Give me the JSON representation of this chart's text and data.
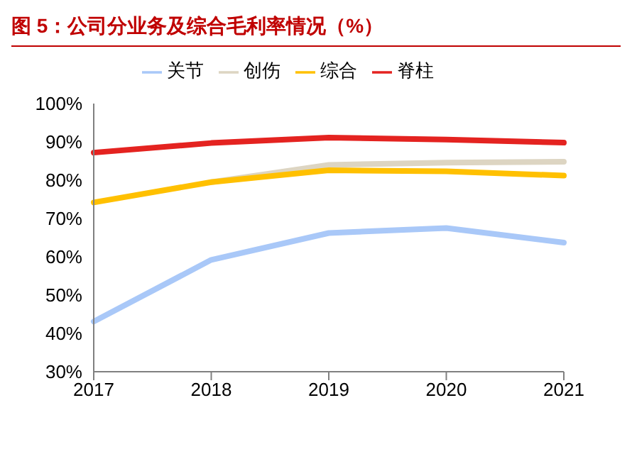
{
  "chart_data": {
    "type": "line",
    "title": "图 5：公司分业务及综合毛利率情况（%）",
    "categories": [
      "2017",
      "2018",
      "2019",
      "2020",
      "2021"
    ],
    "series": [
      {
        "name": "脊柱",
        "color": "#e42320",
        "values": [
          87.2,
          89.7,
          91.1,
          90.6,
          89.8
        ]
      },
      {
        "name": "创伤",
        "color": "#ddd5c2",
        "values": [
          null,
          79.5,
          84.0,
          84.6,
          84.8
        ]
      },
      {
        "name": "关节",
        "color": "#a9c8f8",
        "values": [
          43.1,
          59.2,
          66.2,
          67.5,
          63.7
        ]
      },
      {
        "name": "综合",
        "color": "#ffc000",
        "values": [
          74.2,
          79.5,
          82.6,
          82.3,
          81.2
        ]
      }
    ],
    "ylim": [
      30,
      100
    ],
    "yticks": [
      {
        "value": 30,
        "label": "30%"
      },
      {
        "value": 40,
        "label": "40%"
      },
      {
        "value": 50,
        "label": "50%"
      },
      {
        "value": 60,
        "label": "60%"
      },
      {
        "value": 70,
        "label": "70%"
      },
      {
        "value": 80,
        "label": "80%"
      },
      {
        "value": 90,
        "label": "90%"
      },
      {
        "value": 100,
        "label": "100%"
      }
    ],
    "grid": false,
    "legend": "top",
    "marker": "none",
    "line_style": "solid"
  }
}
